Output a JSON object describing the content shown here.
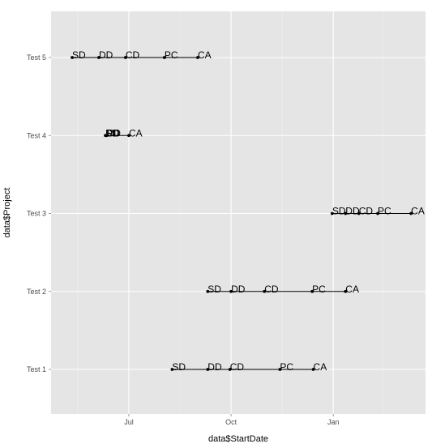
{
  "chart_data": {
    "type": "scatter",
    "title": "",
    "xlabel": "data$StartDate",
    "ylabel": "data$Project",
    "x_ticks": [
      "Jul",
      "Oct",
      "Jan"
    ],
    "y_categories": [
      "Test 1",
      "Test 2",
      "Test 3",
      "Test 4",
      "Test 5"
    ],
    "grid": true,
    "legend": "none",
    "colors": {
      "panel": "#e5e5e5",
      "grid_major": "#ffffff",
      "grid_minor": "#f0f0f0",
      "marks": "#000000"
    },
    "series": [
      {
        "project": "Test 5",
        "points": [
          {
            "label": "SD",
            "date": "2012-05-11"
          },
          {
            "label": "DD",
            "date": "2012-06-04"
          },
          {
            "label": "CD",
            "date": "2012-06-28"
          },
          {
            "label": "PC",
            "date": "2012-08-02"
          },
          {
            "label": "CA",
            "date": "2012-09-01"
          }
        ]
      },
      {
        "project": "Test 4",
        "points": [
          {
            "label": "SD",
            "date": "2012-06-10"
          },
          {
            "label": "DD",
            "date": "2012-06-10"
          },
          {
            "label": "CD",
            "date": "2012-06-11"
          },
          {
            "label": "PC",
            "date": "2012-06-11"
          },
          {
            "label": "CA",
            "date": "2012-07-01"
          }
        ]
      },
      {
        "project": "Test 3",
        "points": [
          {
            "label": "SD",
            "date": "2012-12-31"
          },
          {
            "label": "DD",
            "date": "2013-01-12"
          },
          {
            "label": "CD",
            "date": "2013-01-24"
          },
          {
            "label": "PC",
            "date": "2013-02-10"
          },
          {
            "label": "CA",
            "date": "2013-03-12"
          }
        ]
      },
      {
        "project": "Test 2",
        "points": [
          {
            "label": "SD",
            "date": "2012-09-10"
          },
          {
            "label": "DD",
            "date": "2012-10-01"
          },
          {
            "label": "CD",
            "date": "2012-10-31"
          },
          {
            "label": "PC",
            "date": "2012-12-13"
          },
          {
            "label": "CA",
            "date": "2013-01-12"
          }
        ]
      },
      {
        "project": "Test 1",
        "points": [
          {
            "label": "SD",
            "date": "2012-08-09"
          },
          {
            "label": "DD",
            "date": "2012-09-10"
          },
          {
            "label": "CD",
            "date": "2012-09-30"
          },
          {
            "label": "PC",
            "date": "2012-11-14"
          },
          {
            "label": "CA",
            "date": "2012-12-14"
          }
        ]
      }
    ]
  }
}
